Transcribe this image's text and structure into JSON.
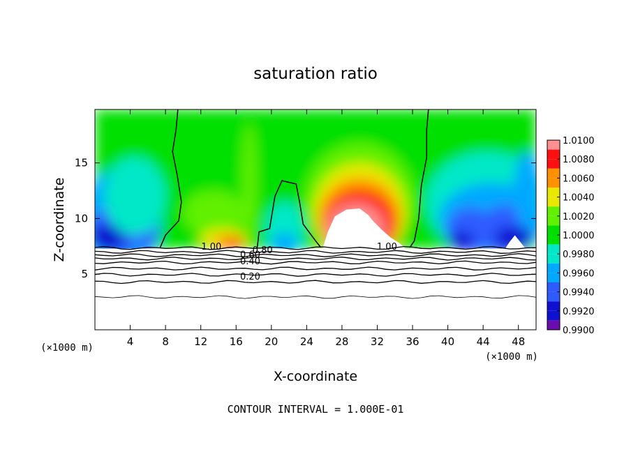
{
  "chart_data": {
    "type": "heatmap",
    "title": "saturation ratio",
    "xlabel": "X-coordinate",
    "ylabel": "Z-coordinate",
    "x_unit_left": "(×1000 m)",
    "x_unit_right": "(×1000 m)",
    "xlim": [
      0,
      50
    ],
    "ylim": [
      0,
      19.8
    ],
    "x_ticks": [
      4,
      8,
      12,
      16,
      20,
      24,
      28,
      32,
      36,
      40,
      44,
      48
    ],
    "x_tick_labels": [
      "4",
      "8",
      "12",
      "16",
      "20",
      "24",
      "28",
      "32",
      "36",
      "40",
      "44",
      "48"
    ],
    "y_ticks": [
      5,
      10,
      15
    ],
    "y_tick_labels": [
      "5",
      "10",
      "15"
    ],
    "footer": "CONTOUR INTERVAL = 1.000E-01",
    "colorbar": {
      "levels": [
        0.99,
        0.992,
        0.994,
        0.996,
        0.998,
        1.0,
        1.002,
        1.004,
        1.006,
        1.008,
        1.01
      ],
      "tick_labels": [
        "0.9900",
        "0.9920",
        "0.9940",
        "0.9960",
        "0.9980",
        "1.0000",
        "1.0020",
        "1.0040",
        "1.0060",
        "1.0080",
        "1.0100"
      ],
      "colors": [
        "#6a0dad",
        "#1010d0",
        "#2e5bff",
        "#00a8ff",
        "#00e8c8",
        "#00e000",
        "#60f000",
        "#e8e800",
        "#ff9000",
        "#ff1010",
        "#ff9090"
      ]
    },
    "contour_labels": [
      {
        "text": "1.00",
        "x": 13.2,
        "z": 7.2
      },
      {
        "text": "0.80",
        "x": 19.0,
        "z": 6.9
      },
      {
        "text": "0.60",
        "x": 17.6,
        "z": 6.5
      },
      {
        "text": "0.40",
        "x": 17.6,
        "z": 5.9
      },
      {
        "text": "0.20",
        "x": 17.6,
        "z": 4.5
      },
      {
        "text": "1.00",
        "x": 33.1,
        "z": 7.2
      }
    ],
    "contour_lines_z": [
      7.35,
      7.0,
      6.7,
      6.4,
      6.05,
      5.5,
      4.95,
      4.3,
      2.95
    ],
    "saturated_contour_x": [
      [
        7.4,
        10.3
      ],
      [
        18.4,
        25.6
      ],
      [
        35.7,
        37.5
      ]
    ]
  }
}
